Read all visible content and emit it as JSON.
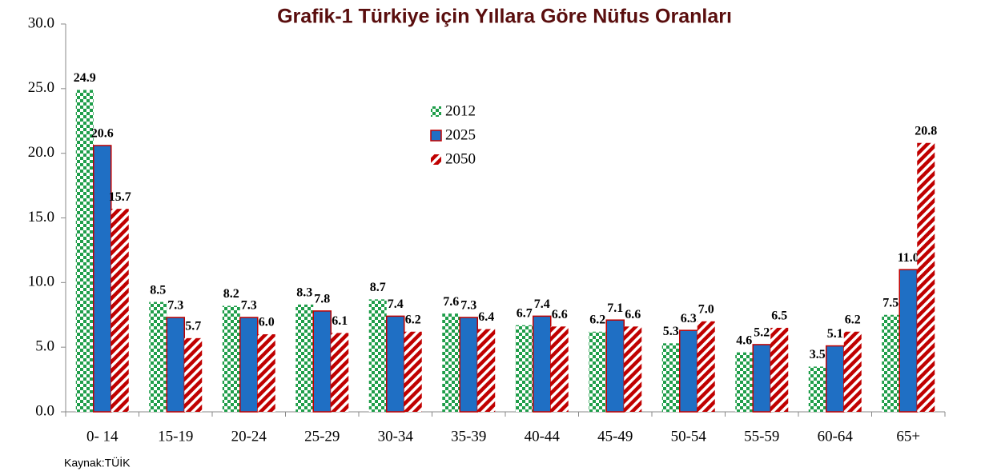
{
  "chart_data": {
    "type": "bar",
    "title": "Grafik-1 Türkiye için Yıllara Göre Nüfus Oranları",
    "source": "Kaynak:TÜİK",
    "categories": [
      "0- 14",
      "15-19",
      "20-24",
      "25-29",
      "30-34",
      "35-39",
      "40-44",
      "45-49",
      "50-54",
      "55-59",
      "60-64",
      "65+"
    ],
    "series": [
      {
        "name": "2012",
        "color": "#1f9e4a",
        "pattern": "checker",
        "values": [
          24.9,
          8.5,
          8.2,
          8.3,
          8.7,
          7.6,
          6.7,
          6.2,
          5.3,
          4.6,
          3.5,
          7.5
        ],
        "value_labels": [
          "24.9",
          "8.5",
          "8.2",
          "8.3",
          "8.7",
          "7.6",
          "6.7",
          "6.2",
          "5.3",
          "4.6",
          "3.5",
          "7.5"
        ]
      },
      {
        "name": "2025",
        "color": "#1f6fc4",
        "pattern": "solid",
        "values": [
          20.6,
          7.3,
          7.3,
          7.8,
          7.4,
          7.3,
          7.4,
          7.1,
          6.3,
          5.2,
          5.1,
          11.0
        ],
        "value_labels": [
          "20.6",
          "7.3",
          "7.3",
          "7.8",
          "7.4",
          "7.3",
          "7.4",
          "7.1",
          "6.3",
          "5.2",
          "5.1",
          "11.0"
        ]
      },
      {
        "name": "2050",
        "color": "#c00000",
        "pattern": "stripes",
        "values": [
          15.7,
          5.7,
          6.0,
          6.1,
          6.2,
          6.4,
          6.6,
          6.6,
          7.0,
          6.5,
          6.2,
          20.8
        ],
        "value_labels": [
          "15.7",
          "5.7",
          "6.0",
          "6.1",
          "6.2",
          "6.4",
          "6.6",
          "6.6",
          "7.0",
          "6.5",
          "6.2",
          "20.8"
        ]
      }
    ],
    "ylim": [
      0,
      30
    ],
    "yticks": [
      {
        "value": 0,
        "label": "0.0"
      },
      {
        "value": 5,
        "label": "5.0"
      },
      {
        "value": 10,
        "label": "10.0"
      },
      {
        "value": 15,
        "label": "15.0"
      },
      {
        "value": 20,
        "label": "20.0"
      },
      {
        "value": 25,
        "label": "25.0"
      },
      {
        "value": 30,
        "label": "30.0"
      }
    ],
    "grid": false
  }
}
